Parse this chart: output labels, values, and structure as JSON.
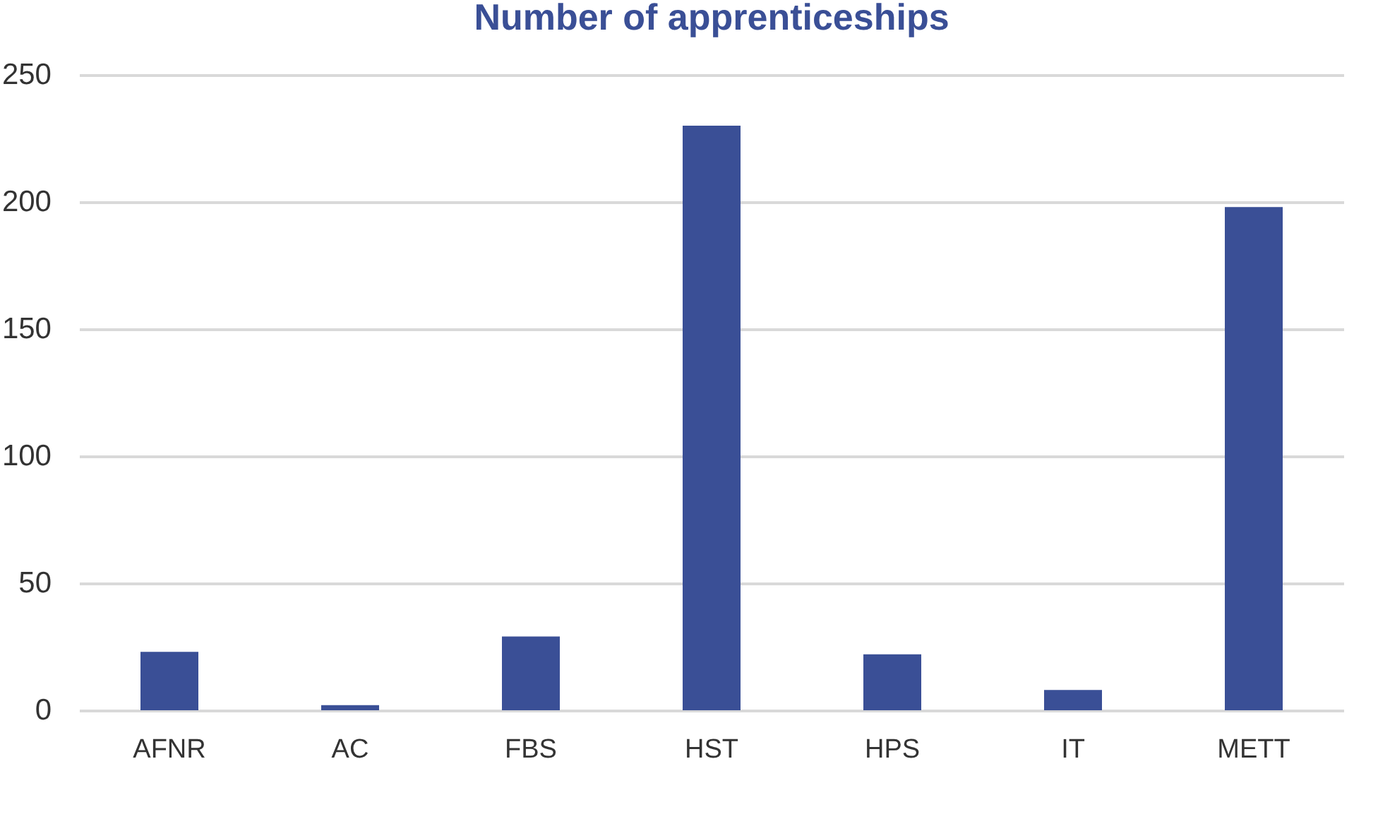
{
  "chart_data": {
    "type": "bar",
    "title": "Number of apprenticeships",
    "categories": [
      "AFNR",
      "AC",
      "FBS",
      "HST",
      "HPS",
      "IT",
      "METT"
    ],
    "values": [
      23,
      2,
      29,
      230,
      22,
      8,
      198
    ],
    "color": "#3a4f96",
    "ylim": [
      0,
      250
    ],
    "yticks": [
      0,
      50,
      100,
      150,
      200,
      250
    ],
    "grid": "y"
  }
}
